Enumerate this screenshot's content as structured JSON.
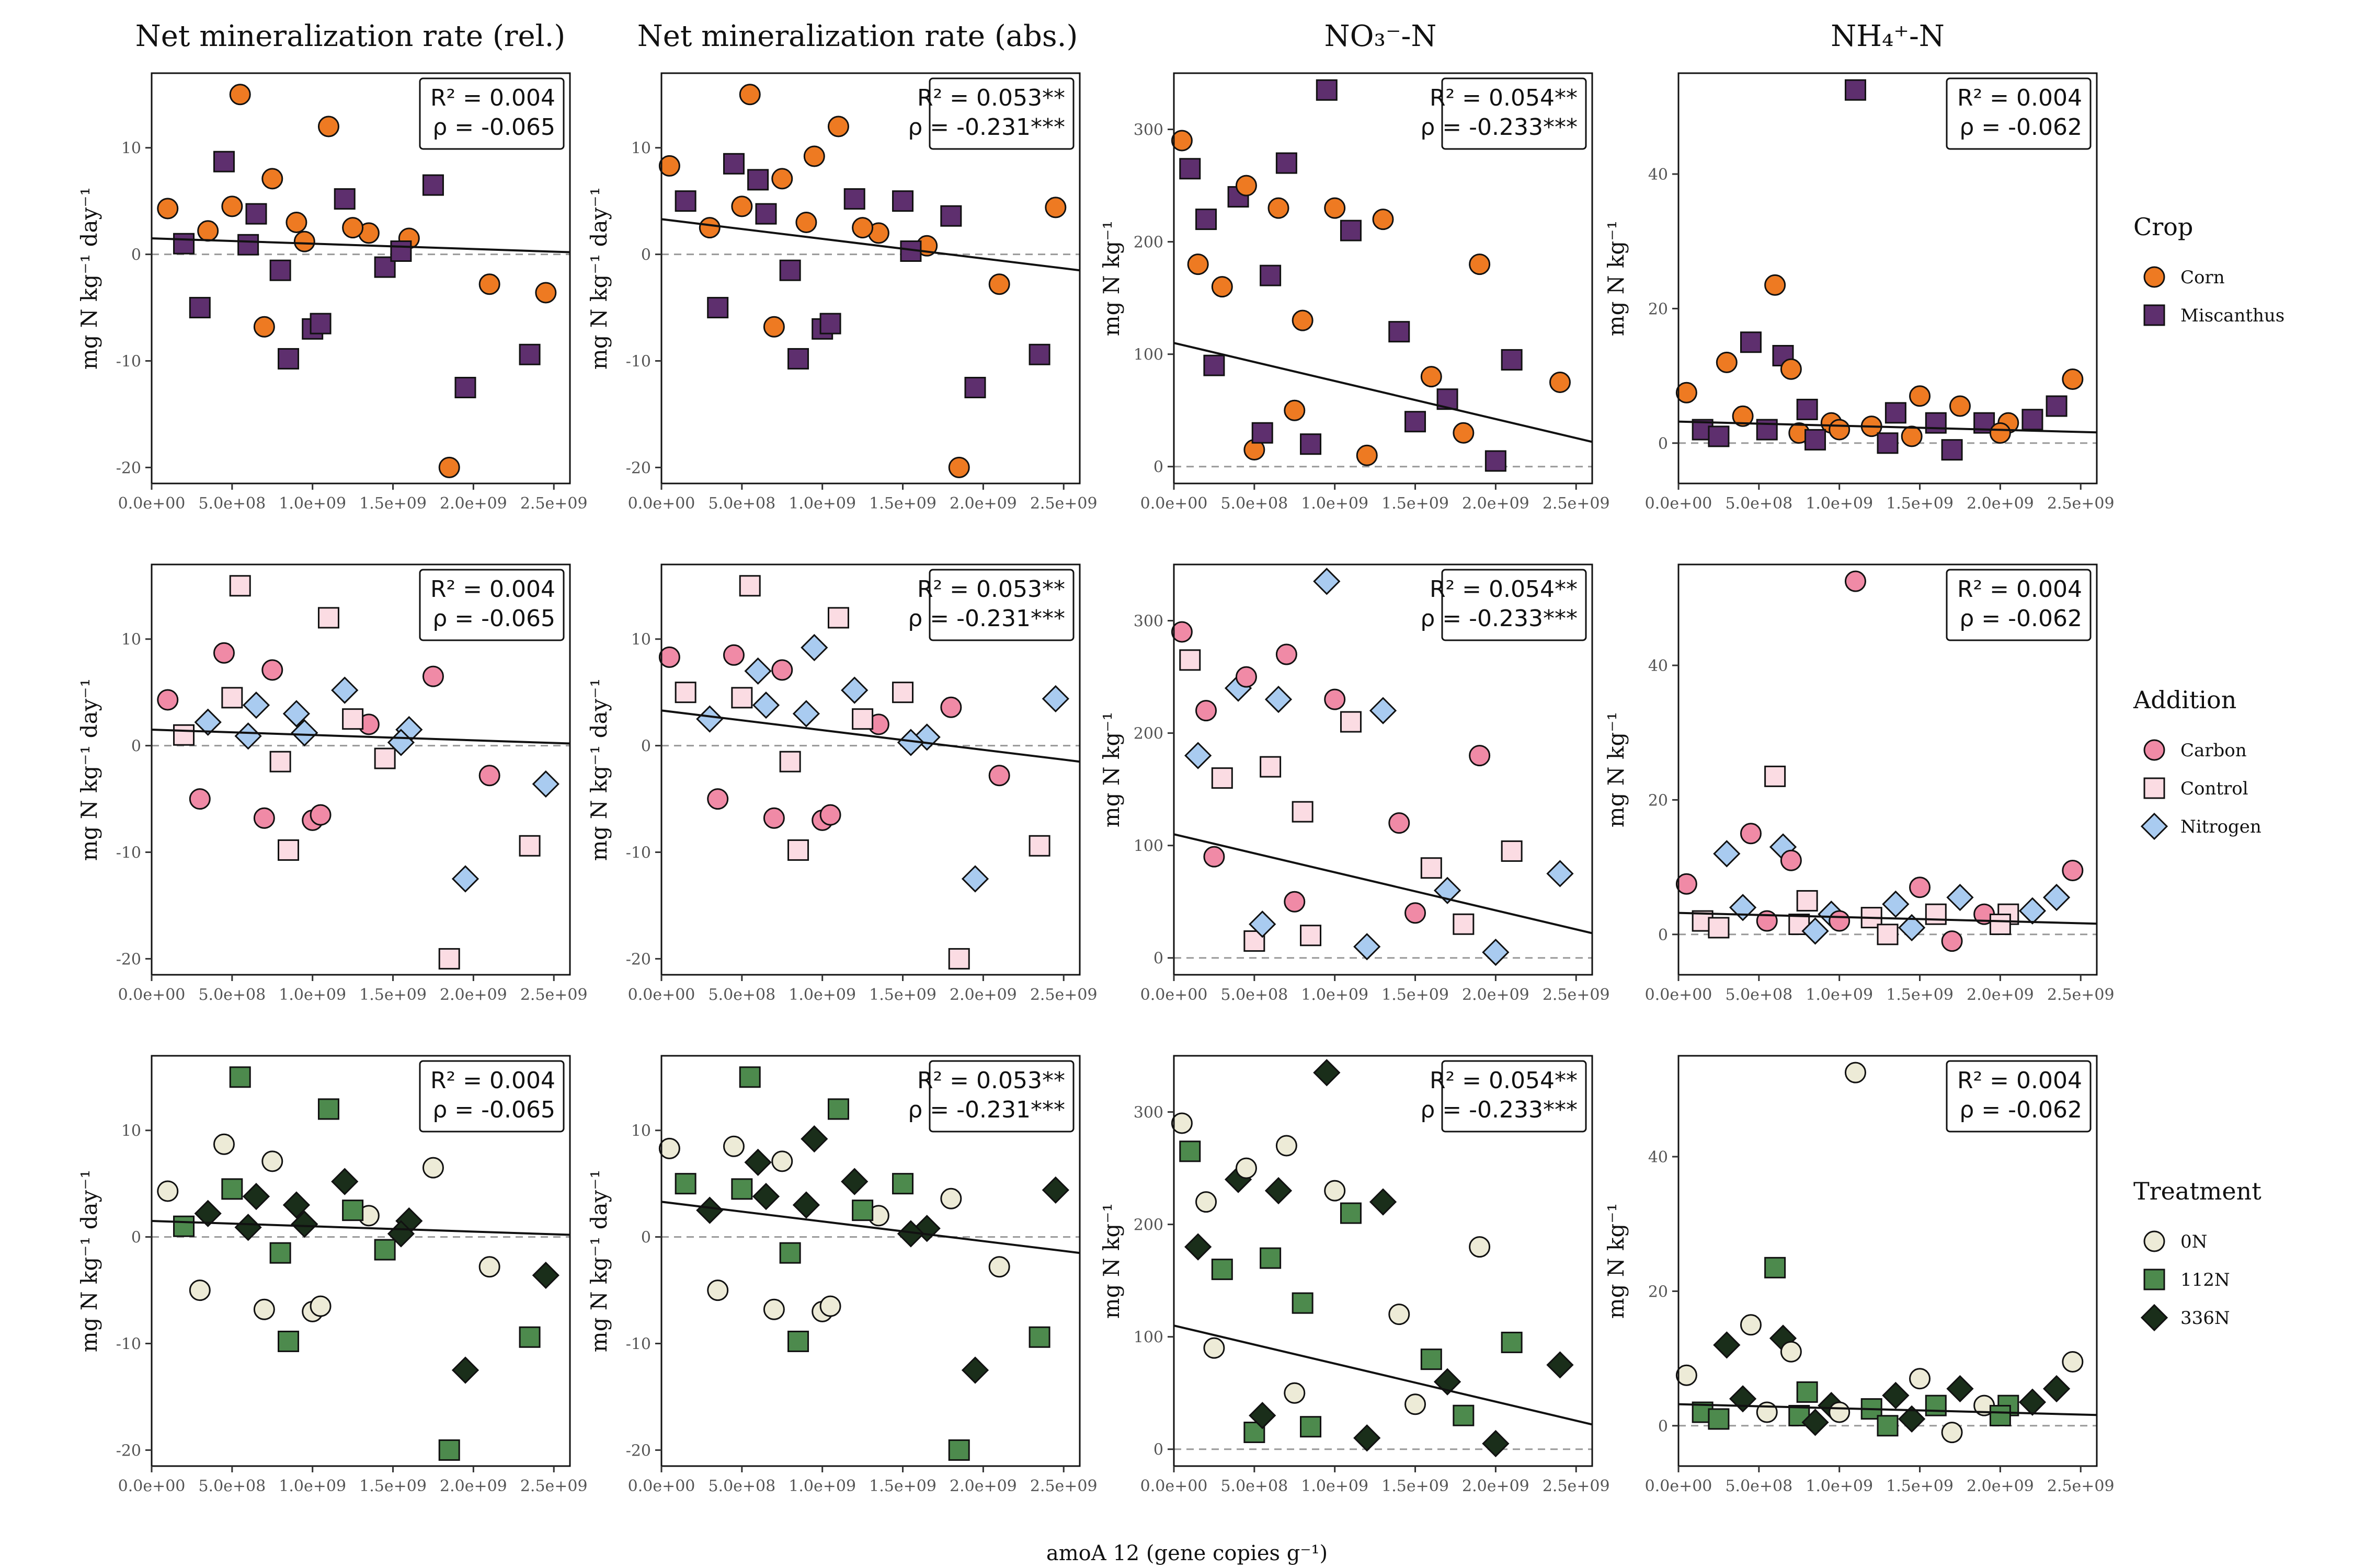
{
  "figure": {
    "xlabel": "amoA 12 (gene copies g⁻¹)",
    "column_titles": [
      "Net mineralization rate (rel.)",
      "Net mineralization rate (abs.)",
      "NO₃⁻-N",
      "NH₄⁺-N"
    ],
    "row_groupings": [
      "Crop",
      "Addition",
      "Treatment"
    ]
  },
  "legends": [
    {
      "title": "Crop",
      "items": [
        {
          "label": "Corn",
          "shape": "circle",
          "color": "#EE7A22"
        },
        {
          "label": "Miscanthus",
          "shape": "square",
          "color": "#5E2F6E"
        }
      ]
    },
    {
      "title": "Addition",
      "items": [
        {
          "label": "Carbon",
          "shape": "circle",
          "color": "#F08AA6"
        },
        {
          "label": "Control",
          "shape": "square",
          "color": "#FBDCE3"
        },
        {
          "label": "Nitrogen",
          "shape": "diamond",
          "color": "#A9CBF0"
        }
      ]
    },
    {
      "title": "Treatment",
      "items": [
        {
          "label": "0N",
          "shape": "circle",
          "color": "#EDEBD7"
        },
        {
          "label": "112N",
          "shape": "square",
          "color": "#4D8A4D"
        },
        {
          "label": "336N",
          "shape": "diamond",
          "color": "#1A2E1A"
        }
      ]
    }
  ],
  "chart_data": [
    {
      "type": "scatter",
      "title": "Net mineralization rate (rel.)",
      "ylabel": "mg N kg⁻¹ day⁻¹",
      "xlabel": "amoA 12 (gene copies g⁻¹)",
      "x_range": [
        0,
        2600000000.0
      ],
      "ylim": [
        -21.5,
        17
      ],
      "yticks": [
        -20,
        -10,
        0,
        10
      ],
      "xticks": [
        0,
        500000000.0,
        1000000000.0,
        1500000000.0,
        2000000000.0,
        2500000000.0
      ],
      "xtick_labels": [
        "0.0e+00",
        "5.0e+08",
        "1.0e+09",
        "1.5e+09",
        "2.0e+09",
        "2.5e+09"
      ],
      "regression": {
        "x0": 0,
        "y0": 1.5,
        "x1": 2600000000.0,
        "y1": 0.2
      },
      "stats": {
        "r2": "R² = 0.004",
        "rho": "ρ = -0.065"
      },
      "points": {
        "x": [
          100000000.0,
          200000000.0,
          350000000.0,
          450000000.0,
          550000000.0,
          600000000.0,
          700000000.0,
          800000000.0,
          900000000.0,
          1000000000.0,
          1100000000.0,
          1200000000.0,
          1350000000.0,
          1450000000.0,
          1600000000.0,
          1750000000.0,
          1850000000.0,
          1950000000.0,
          2100000000.0,
          2350000000.0,
          2450000000.0,
          300000000.0,
          500000000.0,
          650000000.0,
          750000000.0,
          850000000.0,
          950000000.0,
          1050000000.0,
          1250000000.0,
          1550000000.0
        ],
        "y": [
          4.3,
          1.0,
          2.2,
          8.7,
          15.0,
          0.9,
          -6.8,
          -1.5,
          3.0,
          -7.0,
          12.0,
          5.2,
          2.0,
          -1.2,
          1.5,
          6.5,
          -20.0,
          -12.5,
          -2.8,
          -9.4,
          -3.6,
          -5.0,
          4.5,
          3.8,
          7.1,
          -9.8,
          1.2,
          -6.5,
          2.5,
          0.3
        ]
      }
    },
    {
      "type": "scatter",
      "title": "Net mineralization rate (abs.)",
      "ylabel": "mg N kg⁻¹ day⁻¹",
      "xlabel": "amoA 12 (gene copies g⁻¹)",
      "x_range": [
        0,
        2600000000.0
      ],
      "ylim": [
        -21.5,
        17
      ],
      "yticks": [
        -20,
        -10,
        0,
        10
      ],
      "xticks": [
        0,
        500000000.0,
        1000000000.0,
        1500000000.0,
        2000000000.0,
        2500000000.0
      ],
      "xtick_labels": [
        "0.0e+00",
        "5.0e+08",
        "1.0e+09",
        "1.5e+09",
        "2.0e+09",
        "2.5e+09"
      ],
      "regression": {
        "x0": 0,
        "y0": 3.3,
        "x1": 2600000000.0,
        "y1": -1.5
      },
      "stats": {
        "r2": "R² = 0.053**",
        "rho": "ρ = -0.231***"
      },
      "points": {
        "x": [
          50000000.0,
          150000000.0,
          300000000.0,
          450000000.0,
          550000000.0,
          600000000.0,
          700000000.0,
          800000000.0,
          900000000.0,
          1000000000.0,
          1100000000.0,
          1200000000.0,
          1350000000.0,
          1500000000.0,
          1650000000.0,
          1800000000.0,
          1850000000.0,
          1950000000.0,
          2100000000.0,
          2350000000.0,
          2450000000.0,
          350000000.0,
          500000000.0,
          650000000.0,
          750000000.0,
          850000000.0,
          950000000.0,
          1050000000.0,
          1250000000.0,
          1550000000.0
        ],
        "y": [
          8.3,
          5.0,
          2.5,
          8.5,
          15.0,
          7.0,
          -6.8,
          -1.5,
          3.0,
          -7.0,
          12.0,
          5.2,
          2.0,
          5.0,
          0.8,
          3.6,
          -20.0,
          -12.5,
          -2.8,
          -9.4,
          4.4,
          -5.0,
          4.5,
          3.8,
          7.1,
          -9.8,
          9.2,
          -6.5,
          2.5,
          0.3
        ]
      }
    },
    {
      "type": "scatter",
      "title": "NO₃⁻-N",
      "ylabel": "mg N kg⁻¹",
      "xlabel": "amoA 12 (gene copies g⁻¹)",
      "x_range": [
        0,
        2600000000.0
      ],
      "ylim": [
        -15,
        350
      ],
      "yticks": [
        0,
        100,
        200,
        300
      ],
      "xticks": [
        0,
        500000000.0,
        1000000000.0,
        1500000000.0,
        2000000000.0,
        2500000000.0
      ],
      "xtick_labels": [
        "0.0e+00",
        "5.0e+08",
        "1.0e+09",
        "1.5e+09",
        "2.0e+09",
        "2.5e+09"
      ],
      "regression": {
        "x0": 0,
        "y0": 110,
        "x1": 2600000000.0,
        "y1": 22
      },
      "stats": {
        "r2": "R² = 0.054**",
        "rho": "ρ = -0.233***"
      },
      "points": {
        "x": [
          50000000.0,
          100000000.0,
          150000000.0,
          200000000.0,
          300000000.0,
          400000000.0,
          450000000.0,
          600000000.0,
          650000000.0,
          700000000.0,
          800000000.0,
          950000000.0,
          1000000000.0,
          1100000000.0,
          1300000000.0,
          1400000000.0,
          1600000000.0,
          1700000000.0,
          1900000000.0,
          2100000000.0,
          2400000000.0,
          250000000.0,
          500000000.0,
          550000000.0,
          750000000.0,
          850000000.0,
          1200000000.0,
          1500000000.0,
          1800000000.0,
          2000000000.0
        ],
        "y": [
          290,
          265,
          180,
          220,
          160,
          240,
          250,
          170,
          230,
          270,
          130,
          335,
          230,
          210,
          220,
          120,
          80,
          60,
          180,
          95,
          75,
          90,
          15,
          30,
          50,
          20,
          10,
          40,
          30,
          5
        ]
      }
    },
    {
      "type": "scatter",
      "title": "NH₄⁺-N",
      "ylabel": "mg N kg⁻¹",
      "xlabel": "amoA 12 (gene copies g⁻¹)",
      "x_range": [
        0,
        2600000000.0
      ],
      "ylim": [
        -6,
        55
      ],
      "yticks": [
        0,
        20,
        40
      ],
      "xticks": [
        0,
        500000000.0,
        1000000000.0,
        1500000000.0,
        2000000000.0,
        2500000000.0
      ],
      "xtick_labels": [
        "0.0e+00",
        "5.0e+08",
        "1.0e+09",
        "1.5e+09",
        "2.0e+09",
        "2.5e+09"
      ],
      "regression": {
        "x0": 0,
        "y0": 3.2,
        "x1": 2600000000.0,
        "y1": 1.6
      },
      "stats": {
        "r2": "R² = 0.004",
        "rho": "ρ = -0.062"
      },
      "points": {
        "x": [
          50000000.0,
          150000000.0,
          300000000.0,
          450000000.0,
          600000000.0,
          650000000.0,
          700000000.0,
          800000000.0,
          950000000.0,
          1100000000.0,
          1200000000.0,
          1350000000.0,
          1500000000.0,
          1600000000.0,
          1750000000.0,
          1900000000.0,
          2050000000.0,
          2200000000.0,
          2450000000.0,
          250000000.0,
          400000000.0,
          550000000.0,
          750000000.0,
          850000000.0,
          1000000000.0,
          1300000000.0,
          1450000000.0,
          1700000000.0,
          2000000000.0,
          2350000000.0
        ],
        "y": [
          7.5,
          2.0,
          12.0,
          15.0,
          23.5,
          13.0,
          11.0,
          5.0,
          3.0,
          52.5,
          2.5,
          4.5,
          7.0,
          3.0,
          5.5,
          3.0,
          3.0,
          3.5,
          9.5,
          1.0,
          4.0,
          2.0,
          1.5,
          0.5,
          2.0,
          0.0,
          1.0,
          -1.0,
          1.5,
          5.5
        ]
      }
    }
  ]
}
